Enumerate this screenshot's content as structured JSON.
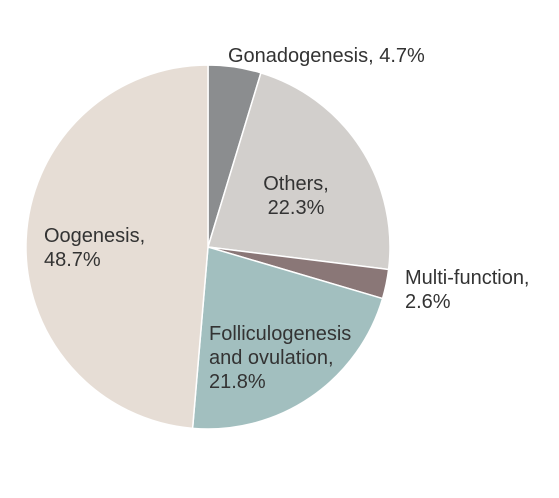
{
  "chart_data": {
    "type": "pie",
    "title": "",
    "start_angle_deg": 0,
    "direction": "clockwise",
    "slices": [
      {
        "name": "Gonadogenesis",
        "value": 4.7,
        "color": "#8b8d8f",
        "label_lines": [
          "Gonadogenesis, 4.7%"
        ]
      },
      {
        "name": "Others",
        "value": 22.3,
        "color": "#d2cfcc",
        "label_lines": [
          "Others,",
          "22.3%"
        ]
      },
      {
        "name": "Multi-function",
        "value": 2.6,
        "color": "#8a7777",
        "label_lines": [
          "Multi-function,",
          "2.6%"
        ]
      },
      {
        "name": "Folliculogenesis and ovulation",
        "value": 21.8,
        "color": "#a2bfbf",
        "label_lines": [
          "Folliculogenesis",
          "and ovulation,",
          "21.8%"
        ]
      },
      {
        "name": "Oogenesis",
        "value": 48.7,
        "color": "#e6ddd5",
        "label_lines": [
          "Oogenesis,",
          "48.7%"
        ]
      }
    ]
  }
}
